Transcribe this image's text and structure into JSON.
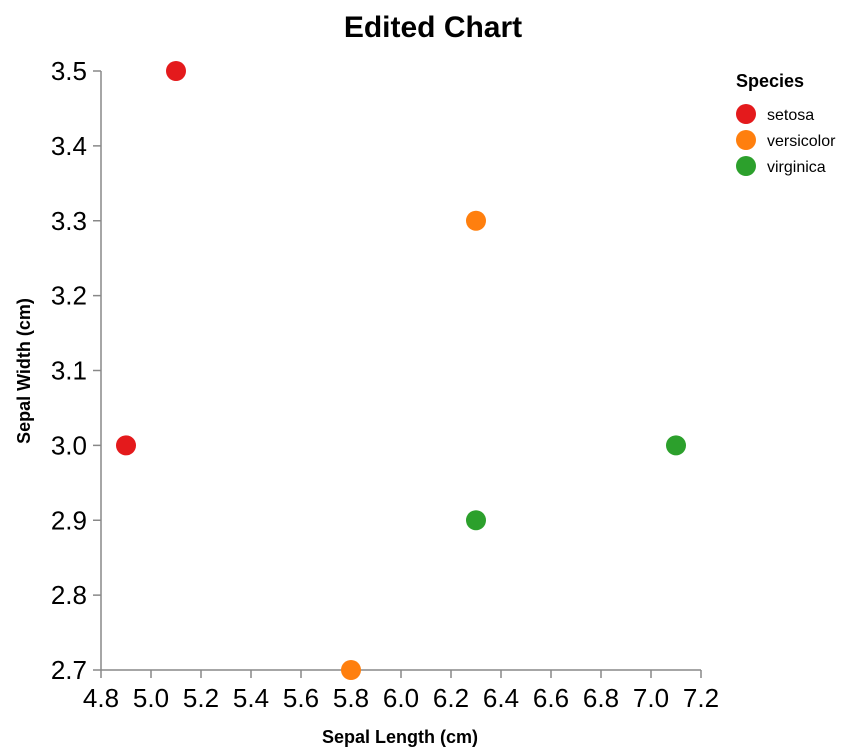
{
  "chart_data": {
    "type": "scatter",
    "title": "Edited Chart",
    "xlabel": "Sepal Length (cm)",
    "ylabel": "Sepal Width (cm)",
    "xlim": [
      4.8,
      7.2
    ],
    "ylim": [
      2.7,
      3.5
    ],
    "xticks": [
      "4.8",
      "5.0",
      "5.2",
      "5.4",
      "5.6",
      "5.8",
      "6.0",
      "6.2",
      "6.4",
      "6.6",
      "6.8",
      "7.0",
      "7.2"
    ],
    "yticks": [
      "2.7",
      "2.8",
      "2.9",
      "3.0",
      "3.1",
      "3.2",
      "3.3",
      "3.4",
      "3.5"
    ],
    "grid": false,
    "legend": {
      "title": "Species",
      "placement": "top-right"
    },
    "series": [
      {
        "name": "setosa",
        "color": "#e41a1c",
        "points": [
          {
            "x": 5.1,
            "y": 3.5
          },
          {
            "x": 4.9,
            "y": 3.0
          }
        ]
      },
      {
        "name": "versicolor",
        "color": "#ff7f0e",
        "points": [
          {
            "x": 6.3,
            "y": 3.3
          },
          {
            "x": 5.8,
            "y": 2.7
          }
        ]
      },
      {
        "name": "virginica",
        "color": "#2ca02c",
        "points": [
          {
            "x": 7.1,
            "y": 3.0
          },
          {
            "x": 6.3,
            "y": 2.9
          }
        ]
      }
    ]
  }
}
